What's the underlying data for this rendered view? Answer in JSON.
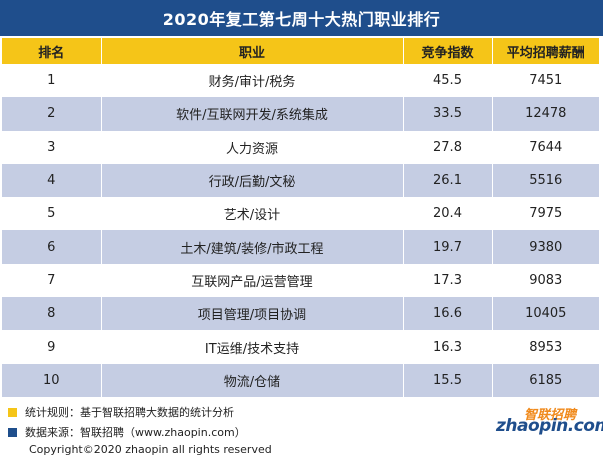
{
  "title": "2020年复工第七周十大热门职业排行",
  "table": {
    "headers": [
      "排名",
      "职业",
      "竞争指数",
      "平均招聘薪酬"
    ],
    "rows": [
      {
        "rank": "1",
        "job": "财务/审计/税务",
        "index": "45.5",
        "salary": "7451"
      },
      {
        "rank": "2",
        "job": "软件/互联网开发/系统集成",
        "index": "33.5",
        "salary": "12478"
      },
      {
        "rank": "3",
        "job": "人力资源",
        "index": "27.8",
        "salary": "7644"
      },
      {
        "rank": "4",
        "job": "行政/后勤/文秘",
        "index": "26.1",
        "salary": "5516"
      },
      {
        "rank": "5",
        "job": "艺术/设计",
        "index": "20.4",
        "salary": "7975"
      },
      {
        "rank": "6",
        "job": "土木/建筑/装修/市政工程",
        "index": "19.7",
        "salary": "9380"
      },
      {
        "rank": "7",
        "job": "互联网产品/运营管理",
        "index": "17.3",
        "salary": "9083"
      },
      {
        "rank": "8",
        "job": "项目管理/项目协调",
        "index": "16.6",
        "salary": "10405"
      },
      {
        "rank": "9",
        "job": "IT运维/技术支持",
        "index": "16.3",
        "salary": "8953"
      },
      {
        "rank": "10",
        "job": "物流/仓储",
        "index": "15.5",
        "salary": "6185"
      }
    ]
  },
  "notes": {
    "rule": "统计规则：基于智联招聘大数据的统计分析",
    "source": "数据来源：智联招聘（www.zhaopin.com）"
  },
  "copyright": "Copyright©2020 zhaopin all rights reserved",
  "logo": {
    "cn": "智联招聘",
    "en": "zhaopin.com"
  },
  "colors": {
    "title_bg": "#1f4e8c",
    "header_bg": "#f5c518",
    "stripe": "#c5cde3"
  }
}
